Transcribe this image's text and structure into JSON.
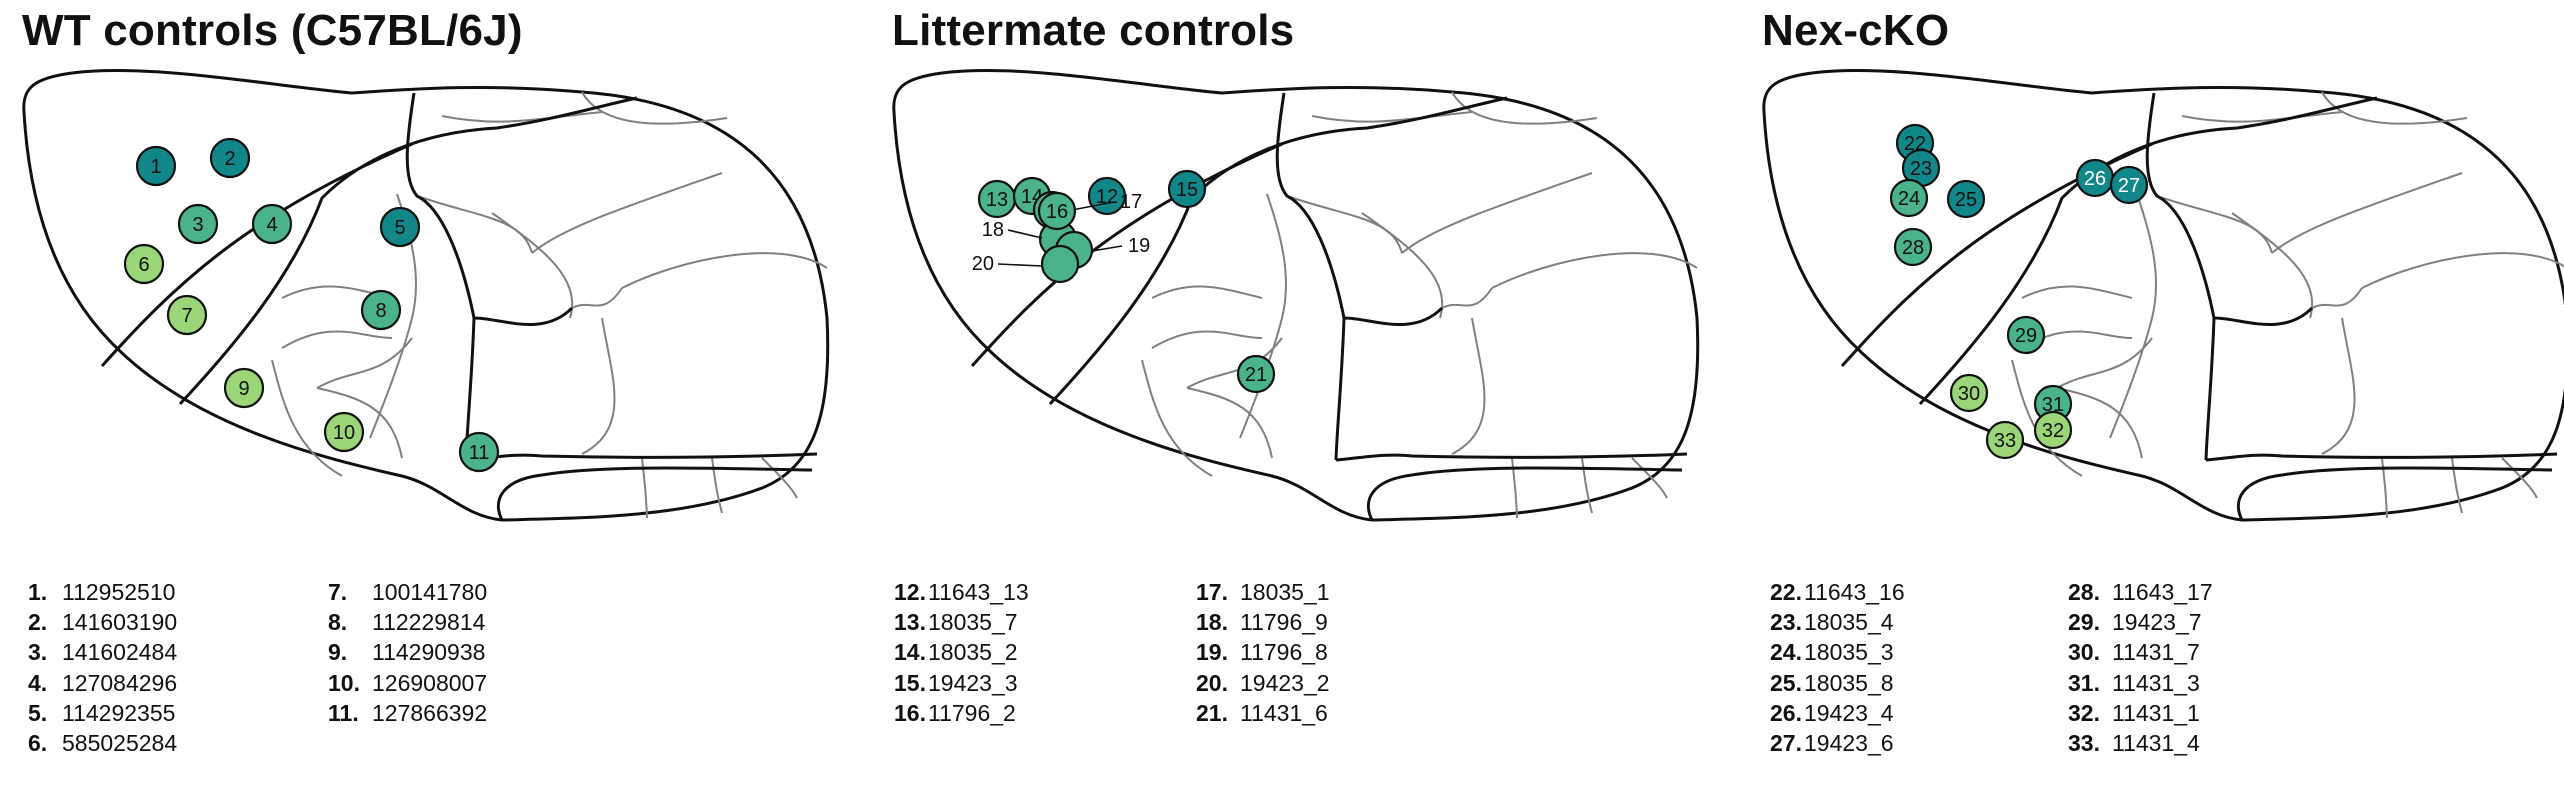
{
  "colors": {
    "dark_teal": "#12878a",
    "mid_green": "#4bb38a",
    "light_green": "#9ad678",
    "outline": "#111111",
    "region": "#808080"
  },
  "panels": [
    {
      "title": "WT controls (C57BL/6J)",
      "sites": [
        {
          "label": "1",
          "color": "dark_teal"
        },
        {
          "label": "2",
          "color": "dark_teal"
        },
        {
          "label": "3",
          "color": "mid_green"
        },
        {
          "label": "4",
          "color": "mid_green"
        },
        {
          "label": "5",
          "color": "dark_teal"
        },
        {
          "label": "6",
          "color": "light_green"
        },
        {
          "label": "7",
          "color": "light_green"
        },
        {
          "label": "8",
          "color": "mid_green"
        },
        {
          "label": "9",
          "color": "light_green"
        },
        {
          "label": "10",
          "color": "light_green"
        },
        {
          "label": "11",
          "color": "mid_green"
        }
      ],
      "legend": [
        [
          {
            "num": "1.",
            "id": "112952510"
          },
          {
            "num": "2.",
            "id": "141603190"
          },
          {
            "num": "3.",
            "id": "141602484"
          },
          {
            "num": "4.",
            "id": "127084296"
          },
          {
            "num": "5.",
            "id": "114292355"
          },
          {
            "num": "6.",
            "id": "585025284"
          }
        ],
        [
          {
            "num": "7.",
            "id": "100141780"
          },
          {
            "num": "8.",
            "id": "112229814"
          },
          {
            "num": "9.",
            "id": "114290938"
          },
          {
            "num": "10.",
            "id": "126908007"
          },
          {
            "num": "11.",
            "id": "127866392"
          }
        ]
      ]
    },
    {
      "title": "Littermate controls",
      "sites": [
        {
          "label": "12",
          "color": "dark_teal"
        },
        {
          "label": "13",
          "color": "mid_green"
        },
        {
          "label": "14",
          "color": "mid_green"
        },
        {
          "label": "15",
          "color": "dark_teal"
        },
        {
          "label": "16",
          "color": "mid_green"
        },
        {
          "label": "17",
          "color": "mid_green"
        },
        {
          "label": "18",
          "color": "mid_green"
        },
        {
          "label": "19",
          "color": "mid_green"
        },
        {
          "label": "20",
          "color": "mid_green"
        },
        {
          "label": "21",
          "color": "mid_green"
        }
      ],
      "legend": [
        [
          {
            "num": "12.",
            "id": "11643_13"
          },
          {
            "num": "13.",
            "id": "18035_7"
          },
          {
            "num": "14.",
            "id": "18035_2"
          },
          {
            "num": "15.",
            "id": "19423_3"
          },
          {
            "num": "16.",
            "id": "11796_2"
          }
        ],
        [
          {
            "num": "17.",
            "id": "18035_1"
          },
          {
            "num": "18.",
            "id": "11796_9"
          },
          {
            "num": "19.",
            "id": "11796_8"
          },
          {
            "num": "20.",
            "id": "19423_2"
          },
          {
            "num": "21.",
            "id": "11431_6"
          }
        ]
      ]
    },
    {
      "title": "Nex-cKO",
      "sites": [
        {
          "label": "22",
          "color": "dark_teal"
        },
        {
          "label": "23",
          "color": "dark_teal"
        },
        {
          "label": "24",
          "color": "mid_green"
        },
        {
          "label": "25",
          "color": "dark_teal"
        },
        {
          "label": "26",
          "color": "dark_teal"
        },
        {
          "label": "27",
          "color": "dark_teal"
        },
        {
          "label": "28",
          "color": "mid_green"
        },
        {
          "label": "29",
          "color": "mid_green"
        },
        {
          "label": "30",
          "color": "light_green"
        },
        {
          "label": "31",
          "color": "mid_green"
        },
        {
          "label": "32",
          "color": "light_green"
        },
        {
          "label": "33",
          "color": "light_green"
        }
      ],
      "legend": [
        [
          {
            "num": "22.",
            "id": "11643_16"
          },
          {
            "num": "23.",
            "id": "18035_4"
          },
          {
            "num": "24.",
            "id": "18035_3"
          },
          {
            "num": "25.",
            "id": "18035_8"
          },
          {
            "num": "26.",
            "id": "19423_4"
          },
          {
            "num": "27.",
            "id": "19423_6"
          }
        ],
        [
          {
            "num": "28.",
            "id": "11643_17"
          },
          {
            "num": "29.",
            "id": "19423_7"
          },
          {
            "num": "30.",
            "id": "11431_7"
          },
          {
            "num": "31.",
            "id": "11431_3"
          },
          {
            "num": "32.",
            "id": "11431_1"
          },
          {
            "num": "33.",
            "id": "11431_4"
          }
        ]
      ]
    }
  ]
}
